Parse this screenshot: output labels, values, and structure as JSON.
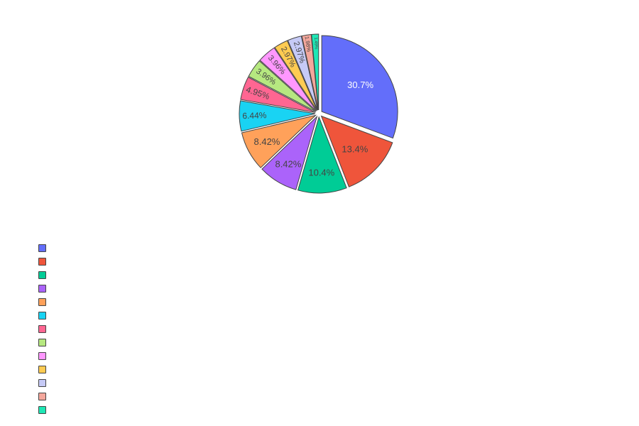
{
  "chart_data": {
    "type": "pie",
    "title": "",
    "labels": [
      "",
      "",
      "",
      "",
      "",
      "",
      "",
      "",
      "",
      "",
      "",
      "",
      ""
    ],
    "values": [
      30.7,
      13.4,
      10.4,
      8.42,
      8.42,
      6.44,
      4.95,
      3.96,
      3.96,
      2.97,
      2.97,
      1.98,
      1.49
    ],
    "text": [
      "30.7%",
      "13.4%",
      "10.4%",
      "8.42%",
      "8.42%",
      "6.44%",
      "4.95%",
      "3.96%",
      "3.96%",
      "2.97%",
      "2.97%",
      "1.98%",
      "1.49%"
    ],
    "colors": [
      "#636efa",
      "#EF553B",
      "#00cc96",
      "#ab63fa",
      "#FFA15A",
      "#19d3f3",
      "#FF6692",
      "#B6E880",
      "#FF97FF",
      "#FECB52",
      "#c6caf6",
      "#f4a79c",
      "#1ee7b5"
    ],
    "text_colors": [
      "#ffffff",
      "#444444",
      "#444444",
      "#444444",
      "#444444",
      "#444444",
      "#444444",
      "#444444",
      "#444444",
      "#444444",
      "#444444",
      "#444444",
      "#444444"
    ],
    "legend_position": "bottom-left",
    "direction": "clockwise",
    "start": "top"
  }
}
